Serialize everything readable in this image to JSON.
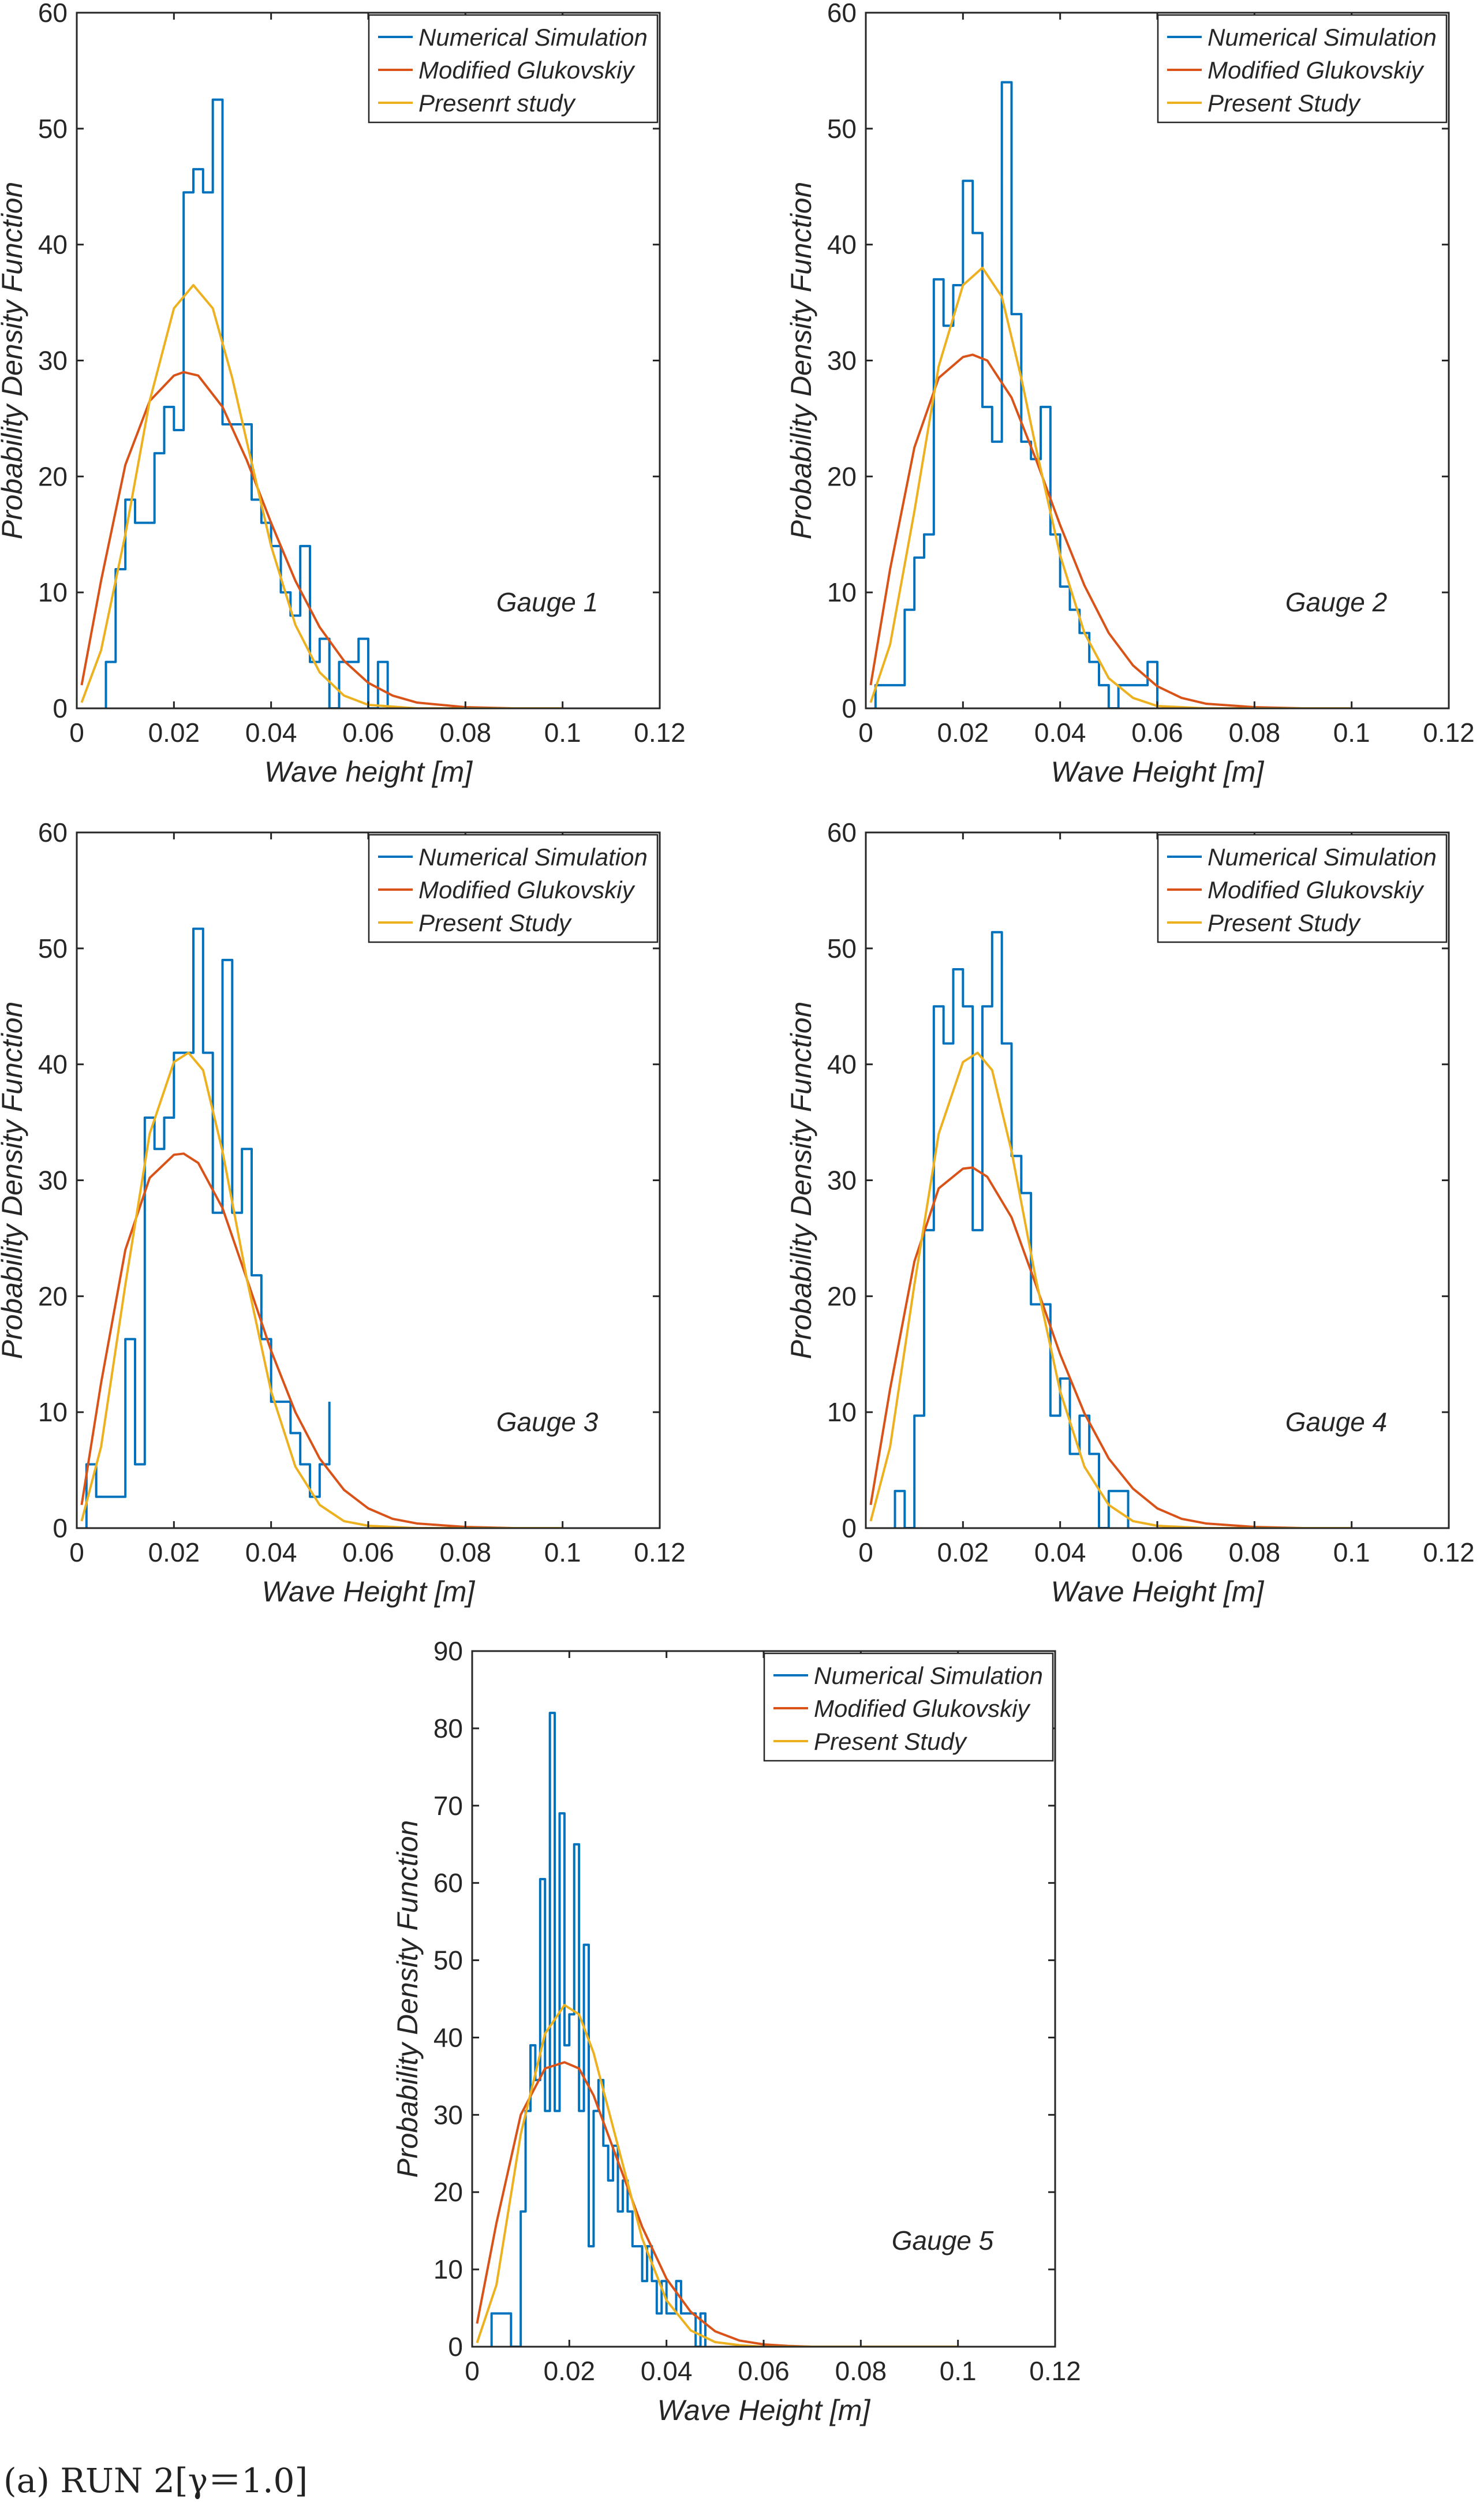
{
  "caption": "(a) RUN 2[γ＝1.0]",
  "colors": {
    "numerical": "#0072BD",
    "glukovskiy": "#D95319",
    "present": "#EDB120"
  },
  "chart_data": [
    {
      "type": "line",
      "panel_label": "Gauge 1",
      "xlabel": "Wave height [m]",
      "ylabel": "Probability Density Function",
      "xlim": [
        0,
        0.12
      ],
      "ylim": [
        0,
        60
      ],
      "xticks": [
        0,
        0.02,
        0.04,
        0.06,
        0.08,
        0.1,
        0.12
      ],
      "xtick_labels": [
        "0",
        "0.02",
        "0.04",
        "0.06",
        "0.08",
        "0.1",
        "0.12"
      ],
      "yticks": [
        0,
        10,
        20,
        30,
        40,
        50,
        60
      ],
      "ytick_labels": [
        "0",
        "10",
        "20",
        "30",
        "40",
        "50",
        "60"
      ],
      "legend_position": "top-right",
      "series": [
        {
          "name": "Numerical Simulation",
          "style": "stairs",
          "x": [
            0.006,
            0.008,
            0.01,
            0.012,
            0.014,
            0.016,
            0.018,
            0.02,
            0.022,
            0.024,
            0.026,
            0.028,
            0.03,
            0.032,
            0.034,
            0.036,
            0.038,
            0.04,
            0.042,
            0.044,
            0.046,
            0.048,
            0.05,
            0.052,
            0.054,
            0.056,
            0.058,
            0.06,
            0.062,
            0.064
          ],
          "y": [
            4,
            12,
            18,
            16,
            16,
            22,
            26,
            24,
            44.5,
            46.5,
            44.5,
            52.5,
            24.5,
            24.5,
            24.5,
            18,
            16,
            14,
            10,
            8,
            14,
            4,
            6,
            0,
            4,
            4,
            6,
            0,
            4,
            0
          ]
        },
        {
          "name": "Modified Glukovskiy",
          "style": "line",
          "x": [
            0.001,
            0.005,
            0.01,
            0.015,
            0.02,
            0.022,
            0.025,
            0.03,
            0.035,
            0.04,
            0.045,
            0.05,
            0.055,
            0.06,
            0.065,
            0.07,
            0.08,
            0.09,
            0.1
          ],
          "y": [
            2,
            11,
            21,
            26.5,
            28.7,
            29,
            28.7,
            26,
            21.4,
            16,
            11,
            7,
            4.1,
            2.2,
            1.1,
            0.5,
            0.1,
            0,
            0
          ]
        },
        {
          "name": "Presenrt study",
          "style": "line",
          "x": [
            0.001,
            0.005,
            0.01,
            0.015,
            0.02,
            0.024,
            0.028,
            0.032,
            0.035,
            0.04,
            0.045,
            0.05,
            0.055,
            0.06,
            0.07,
            0.08,
            0.1
          ],
          "y": [
            0.5,
            5,
            15,
            26.5,
            34.5,
            36.5,
            34.5,
            28.5,
            23,
            14,
            7.2,
            3.1,
            1.1,
            0.3,
            0,
            0,
            0
          ]
        }
      ]
    },
    {
      "type": "line",
      "panel_label": "Gauge 2",
      "xlabel": "Wave Height [m]",
      "ylabel": "Probability Density Function",
      "xlim": [
        0,
        0.12
      ],
      "ylim": [
        0,
        60
      ],
      "xticks": [
        0,
        0.02,
        0.04,
        0.06,
        0.08,
        0.1,
        0.12
      ],
      "xtick_labels": [
        "0",
        "0.02",
        "0.04",
        "0.06",
        "0.08",
        "0.1",
        "0.12"
      ],
      "yticks": [
        0,
        10,
        20,
        30,
        40,
        50,
        60
      ],
      "ytick_labels": [
        "0",
        "10",
        "20",
        "30",
        "40",
        "50",
        "60"
      ],
      "legend_position": "top-right",
      "series": [
        {
          "name": "Numerical Simulation",
          "style": "stairs",
          "x": [
            0.002,
            0.004,
            0.006,
            0.008,
            0.01,
            0.012,
            0.014,
            0.016,
            0.018,
            0.02,
            0.022,
            0.024,
            0.026,
            0.028,
            0.03,
            0.032,
            0.034,
            0.036,
            0.038,
            0.04,
            0.042,
            0.044,
            0.046,
            0.048,
            0.05,
            0.052,
            0.054,
            0.056,
            0.058,
            0.06
          ],
          "y": [
            2,
            2,
            2,
            8.5,
            13,
            15,
            37,
            33,
            36.5,
            45.5,
            41,
            26,
            23,
            54,
            34,
            23,
            21.5,
            26,
            15,
            10.5,
            8.5,
            6.5,
            4,
            2,
            0,
            2,
            2,
            2,
            4,
            0
          ]
        },
        {
          "name": "Modified Glukovskiy",
          "style": "line",
          "x": [
            0.001,
            0.005,
            0.01,
            0.015,
            0.02,
            0.022,
            0.025,
            0.03,
            0.035,
            0.04,
            0.045,
            0.05,
            0.055,
            0.06,
            0.065,
            0.07,
            0.08,
            0.09,
            0.1
          ],
          "y": [
            2,
            12,
            22.5,
            28.5,
            30.3,
            30.5,
            30,
            26.8,
            21.5,
            15.8,
            10.6,
            6.5,
            3.7,
            1.9,
            0.9,
            0.4,
            0.1,
            0,
            0
          ]
        },
        {
          "name": "Present Study",
          "style": "line",
          "x": [
            0.001,
            0.005,
            0.01,
            0.015,
            0.02,
            0.024,
            0.028,
            0.032,
            0.035,
            0.04,
            0.045,
            0.05,
            0.055,
            0.06,
            0.07,
            0.08,
            0.1
          ],
          "y": [
            0.5,
            5.5,
            17,
            29.5,
            36.5,
            38,
            35.5,
            28.5,
            22.5,
            13.2,
            6.5,
            2.6,
            0.9,
            0.2,
            0,
            0,
            0
          ]
        }
      ]
    },
    {
      "type": "line",
      "panel_label": "Gauge 3",
      "xlabel": "Wave Height [m]",
      "ylabel": "Probability Density Function",
      "xlim": [
        0,
        0.12
      ],
      "ylim": [
        0,
        60
      ],
      "xticks": [
        0,
        0.02,
        0.04,
        0.06,
        0.08,
        0.1,
        0.12
      ],
      "xtick_labels": [
        "0",
        "0.02",
        "0.04",
        "0.06",
        "0.08",
        "0.1",
        "0.12"
      ],
      "yticks": [
        0,
        10,
        20,
        30,
        40,
        50,
        60
      ],
      "ytick_labels": [
        "0",
        "10",
        "20",
        "30",
        "40",
        "50",
        "60"
      ],
      "legend_position": "top-right",
      "series": [
        {
          "name": "Numerical Simulation",
          "style": "stairs",
          "x": [
            0.002,
            0.004,
            0.006,
            0.008,
            0.01,
            0.012,
            0.014,
            0.016,
            0.018,
            0.02,
            0.022,
            0.024,
            0.026,
            0.028,
            0.03,
            0.032,
            0.034,
            0.036,
            0.038,
            0.04,
            0.042,
            0.044,
            0.046,
            0.048,
            0.05,
            0.052
          ],
          "y": [
            5.5,
            2.7,
            2.7,
            2.7,
            16.3,
            5.5,
            35.4,
            32.7,
            35.4,
            41,
            41,
            51.7,
            41,
            27.2,
            49,
            27.2,
            32.7,
            21.8,
            16.3,
            10.9,
            10.9,
            8.2,
            5.5,
            2.7,
            5.5,
            10.9
          ]
        },
        {
          "name": "Modified Glukovskiy",
          "style": "line",
          "x": [
            0.001,
            0.005,
            0.01,
            0.015,
            0.02,
            0.022,
            0.025,
            0.03,
            0.035,
            0.04,
            0.045,
            0.05,
            0.055,
            0.06,
            0.065,
            0.07,
            0.08,
            0.09,
            0.1
          ],
          "y": [
            2,
            12.5,
            24,
            30.2,
            32.2,
            32.3,
            31.5,
            27.6,
            21.5,
            15.3,
            10,
            6,
            3.3,
            1.7,
            0.8,
            0.4,
            0.1,
            0,
            0
          ]
        },
        {
          "name": "Present Study",
          "style": "line",
          "x": [
            0.001,
            0.005,
            0.01,
            0.015,
            0.02,
            0.023,
            0.026,
            0.03,
            0.035,
            0.04,
            0.045,
            0.05,
            0.055,
            0.06,
            0.07,
            0.08,
            0.1
          ],
          "y": [
            0.6,
            7,
            21,
            34,
            40.2,
            41,
            39.5,
            32.5,
            21.5,
            11.8,
            5.3,
            2,
            0.6,
            0.2,
            0,
            0,
            0
          ]
        }
      ]
    },
    {
      "type": "line",
      "panel_label": "Gauge 4",
      "xlabel": "Wave Height [m]",
      "ylabel": "Probability Density Function",
      "xlim": [
        0,
        0.12
      ],
      "ylim": [
        0,
        60
      ],
      "xticks": [
        0,
        0.02,
        0.04,
        0.06,
        0.08,
        0.1,
        0.12
      ],
      "xtick_labels": [
        "0",
        "0.02",
        "0.04",
        "0.06",
        "0.08",
        "0.1",
        "0.12"
      ],
      "yticks": [
        0,
        10,
        20,
        30,
        40,
        50,
        60
      ],
      "ytick_labels": [
        "0",
        "10",
        "20",
        "30",
        "40",
        "50",
        "60"
      ],
      "legend_position": "top-right",
      "series": [
        {
          "name": "Numerical Simulation",
          "style": "stairs",
          "x": [
            0.006,
            0.008,
            0.01,
            0.012,
            0.014,
            0.016,
            0.018,
            0.02,
            0.022,
            0.024,
            0.026,
            0.028,
            0.03,
            0.032,
            0.034,
            0.036,
            0.038,
            0.04,
            0.042,
            0.044,
            0.046,
            0.048,
            0.05,
            0.052,
            0.054
          ],
          "y": [
            3.2,
            0,
            9.7,
            25.7,
            45,
            41.8,
            48.2,
            45,
            25.7,
            45,
            51.4,
            41.8,
            32.1,
            28.9,
            19.3,
            19.3,
            9.7,
            12.9,
            6.4,
            9.7,
            6.4,
            0,
            3.2,
            3.2,
            0
          ]
        },
        {
          "name": "Modified Glukovskiy",
          "style": "line",
          "x": [
            0.001,
            0.005,
            0.01,
            0.015,
            0.02,
            0.022,
            0.025,
            0.03,
            0.035,
            0.04,
            0.045,
            0.05,
            0.055,
            0.06,
            0.065,
            0.07,
            0.08,
            0.09,
            0.1
          ],
          "y": [
            2,
            12,
            23,
            29.3,
            31,
            31.1,
            30.3,
            26.8,
            21,
            15,
            9.9,
            6,
            3.4,
            1.7,
            0.8,
            0.4,
            0.1,
            0,
            0
          ]
        },
        {
          "name": "Present Study",
          "style": "line",
          "x": [
            0.001,
            0.005,
            0.01,
            0.015,
            0.02,
            0.023,
            0.026,
            0.03,
            0.035,
            0.04,
            0.045,
            0.05,
            0.055,
            0.06,
            0.07,
            0.08,
            0.1
          ],
          "y": [
            0.6,
            7,
            21,
            34,
            40.2,
            41,
            39.5,
            32.5,
            21.5,
            11.8,
            5.3,
            2,
            0.6,
            0.2,
            0,
            0,
            0
          ]
        }
      ]
    },
    {
      "type": "line",
      "panel_label": "Gauge 5",
      "xlabel": "Wave Height [m]",
      "ylabel": "Probability Density Function",
      "xlim": [
        0,
        0.12
      ],
      "ylim": [
        0,
        90
      ],
      "xticks": [
        0,
        0.02,
        0.04,
        0.06,
        0.08,
        0.1,
        0.12
      ],
      "xtick_labels": [
        "0",
        "0.02",
        "0.04",
        "0.06",
        "0.08",
        "0.1",
        "0.12"
      ],
      "yticks": [
        0,
        10,
        20,
        30,
        40,
        50,
        60,
        70,
        80,
        90
      ],
      "ytick_labels": [
        "0",
        "10",
        "20",
        "30",
        "40",
        "50",
        "60",
        "70",
        "80",
        "90"
      ],
      "legend_position": "top-right",
      "series": [
        {
          "name": "Numerical Simulation",
          "style": "stairs",
          "x": [
            0.004,
            0.006,
            0.008,
            0.01,
            0.011,
            0.012,
            0.013,
            0.014,
            0.015,
            0.016,
            0.017,
            0.018,
            0.019,
            0.02,
            0.021,
            0.022,
            0.023,
            0.024,
            0.025,
            0.026,
            0.027,
            0.028,
            0.029,
            0.03,
            0.031,
            0.032,
            0.033,
            0.034,
            0.035,
            0.036,
            0.037,
            0.038,
            0.039,
            0.04,
            0.041,
            0.042,
            0.043,
            0.044,
            0.045,
            0.046,
            0.047,
            0.048
          ],
          "y": [
            4.3,
            4.3,
            0,
            17.5,
            30.5,
            39,
            34.5,
            60.5,
            30.5,
            82,
            30.5,
            69,
            39,
            43,
            65,
            30.5,
            52,
            13,
            30.5,
            34.5,
            26,
            21.5,
            26,
            17.5,
            21.5,
            17.5,
            13,
            13,
            8.5,
            13,
            8.5,
            4.3,
            8.5,
            4.3,
            4.3,
            8.5,
            4.3,
            4.3,
            4.3,
            0,
            4.3,
            0
          ]
        },
        {
          "name": "Modified Glukovskiy",
          "style": "line",
          "x": [
            0.001,
            0.005,
            0.01,
            0.015,
            0.019,
            0.022,
            0.025,
            0.03,
            0.035,
            0.04,
            0.045,
            0.05,
            0.055,
            0.06,
            0.065,
            0.07,
            0.08,
            0.09,
            0.1
          ],
          "y": [
            3,
            16,
            30,
            36,
            36.8,
            36,
            32.5,
            24,
            15.5,
            8.8,
            4.5,
            2,
            0.8,
            0.3,
            0.1,
            0,
            0,
            0,
            0
          ]
        },
        {
          "name": "Present Study",
          "style": "line",
          "x": [
            0.001,
            0.005,
            0.01,
            0.015,
            0.019,
            0.022,
            0.025,
            0.03,
            0.035,
            0.04,
            0.045,
            0.05,
            0.055,
            0.06,
            0.07,
            0.1
          ],
          "y": [
            0.5,
            8,
            27.5,
            40.5,
            44.2,
            43,
            38,
            26,
            14,
            6,
            2.1,
            0.6,
            0.2,
            0,
            0,
            0
          ]
        }
      ]
    }
  ]
}
